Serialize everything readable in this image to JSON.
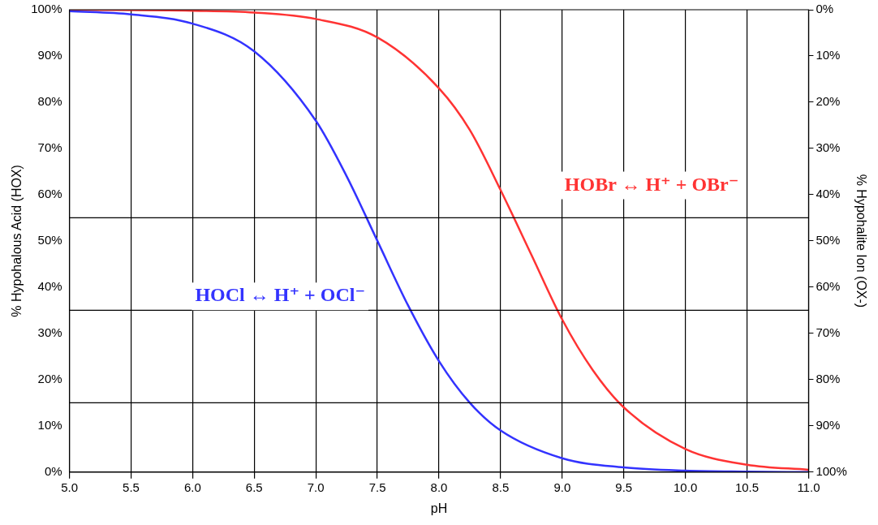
{
  "chart_data": {
    "type": "line",
    "xlabel": "pH",
    "ylabel": "% Hypohalous Acid (HOX)",
    "y2label": "% Hypohalite Ion (OX-)",
    "xlim": [
      5,
      11
    ],
    "xticks": [
      {
        "value": 5,
        "label": "5.0"
      },
      {
        "value": 5.5,
        "label": "5.5"
      },
      {
        "value": 6,
        "label": "6.0"
      },
      {
        "value": 6.5,
        "label": "6.5"
      },
      {
        "value": 7,
        "label": "7.0"
      },
      {
        "value": 7.5,
        "label": "7.5"
      },
      {
        "value": 8,
        "label": "8.0"
      },
      {
        "value": 8.5,
        "label": "8.5"
      },
      {
        "value": 9,
        "label": "9.0"
      },
      {
        "value": 9.5,
        "label": "9.5"
      },
      {
        "value": 10,
        "label": "10.0"
      },
      {
        "value": 10.5,
        "label": "10.5"
      },
      {
        "value": 11,
        "label": "11.0"
      }
    ],
    "ylim": [
      0,
      100
    ],
    "yticks": [
      {
        "value": 0,
        "label": "0%"
      },
      {
        "value": 10,
        "label": "10%"
      },
      {
        "value": 20,
        "label": "20%"
      },
      {
        "value": 30,
        "label": "30%"
      },
      {
        "value": 40,
        "label": "40%"
      },
      {
        "value": 50,
        "label": "50%"
      },
      {
        "value": 60,
        "label": "60%"
      },
      {
        "value": 70,
        "label": "70%"
      },
      {
        "value": 80,
        "label": "80%"
      },
      {
        "value": 90,
        "label": "90%"
      },
      {
        "value": 100,
        "label": "100%"
      }
    ],
    "y2lim": [
      100,
      0
    ],
    "y2ticks": [
      {
        "value": 0,
        "label": "0%"
      },
      {
        "value": 10,
        "label": "10%"
      },
      {
        "value": 20,
        "label": "20%"
      },
      {
        "value": 30,
        "label": "30%"
      },
      {
        "value": 40,
        "label": "40%"
      },
      {
        "value": 50,
        "label": "50%"
      },
      {
        "value": 60,
        "label": "60%"
      },
      {
        "value": 70,
        "label": "70%"
      },
      {
        "value": 80,
        "label": "80%"
      },
      {
        "value": 90,
        "label": "90%"
      },
      {
        "value": 100,
        "label": "100%"
      }
    ],
    "grid": "x",
    "marker": "none",
    "line_style": "solid",
    "legend": false,
    "ref_lines": [
      {
        "axis": "y",
        "value": 55,
        "color": "#000000"
      },
      {
        "axis": "y",
        "value": 35,
        "color": "#000000"
      },
      {
        "axis": "y",
        "value": 15,
        "color": "#000000"
      }
    ],
    "series": [
      {
        "name": "HOCl ↔ H⁺ + OCl⁻",
        "color": "#3333ff",
        "x": [
          5,
          5.5,
          6,
          6.5,
          7,
          7.25,
          7.5,
          7.75,
          8,
          8.25,
          8.5,
          9,
          9.5,
          10,
          10.5,
          11
        ],
        "values": [
          99.7,
          99,
          97,
          91,
          76,
          64,
          50,
          36,
          24,
          15,
          9,
          3,
          1,
          0.3,
          0.1,
          0
        ]
      },
      {
        "name": "HOBr ↔ H⁺ + OBr⁻",
        "color": "#ff3333",
        "x": [
          5,
          6,
          6.5,
          7,
          7.5,
          8,
          8.25,
          8.5,
          8.75,
          9,
          9.25,
          9.5,
          10,
          10.5,
          11
        ],
        "values": [
          100,
          99.8,
          99.4,
          98,
          94,
          83,
          74,
          61,
          47,
          33,
          22,
          14,
          5,
          1.6,
          0.5
        ]
      }
    ]
  }
}
